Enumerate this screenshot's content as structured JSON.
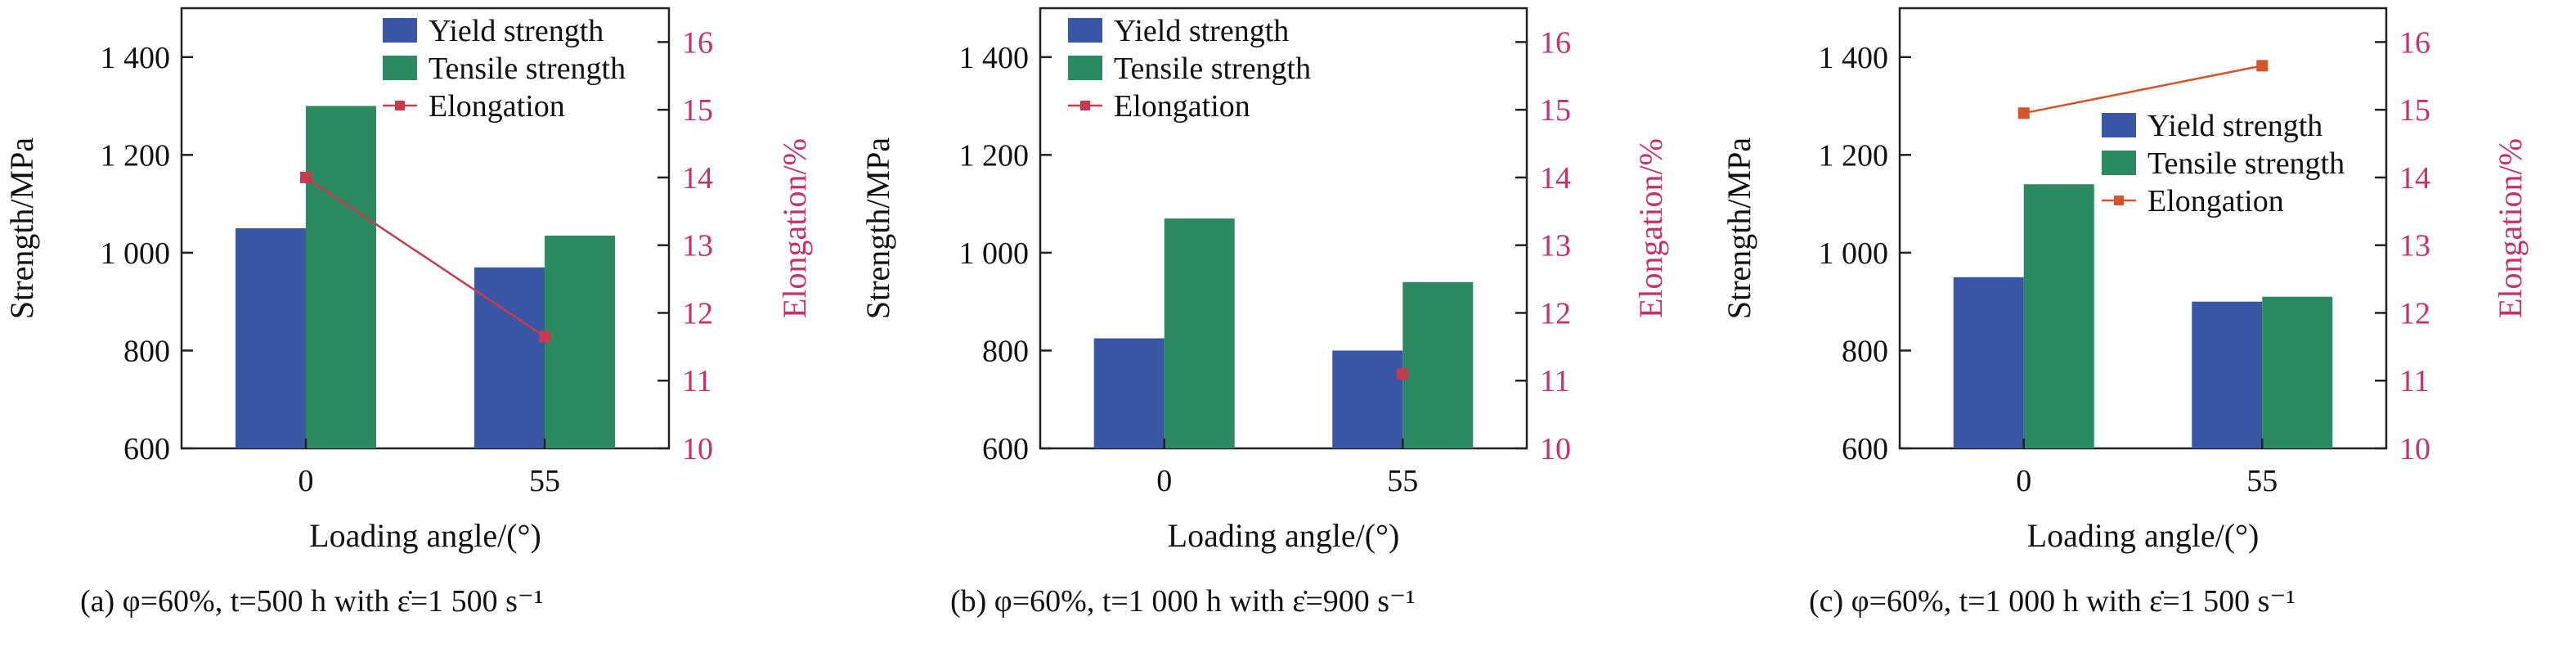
{
  "colors": {
    "yield": "#3a57a5",
    "tensile": "#2c8a62",
    "elongation_a": "#c83a4e",
    "elongation_b": "#c83a4e",
    "elongation_c": "#d2552b",
    "right_axis": "#c8306a",
    "axis": "#222222"
  },
  "panels": [
    {
      "caption": "(a) φ=60%, t=500 h with ε̇=1 500 s⁻¹"
    },
    {
      "caption": "(b) φ=60%, t=1 000 h with ε̇=900 s⁻¹"
    },
    {
      "caption": "(c) φ=60%, t=1 000 h with ε̇=1 500 s⁻¹"
    }
  ],
  "chart_data": [
    {
      "type": "bar",
      "categories": [
        "0",
        "55"
      ],
      "xlabel": "Loading angle/(°)",
      "ylabel": "Strength/MPa",
      "y2label": "Elongation/%",
      "ylim": [
        600,
        1500
      ],
      "y2lim": [
        10,
        16.5
      ],
      "yticks": [
        "600",
        "800",
        "1 000",
        "1 200",
        "1 400"
      ],
      "y2ticks": [
        "10",
        "11",
        "12",
        "13",
        "14",
        "15",
        "16"
      ],
      "legend_position": "top-right",
      "series": [
        {
          "name": "Yield strength",
          "values": [
            1050,
            970
          ]
        },
        {
          "name": "Tensile strength",
          "values": [
            1300,
            1035
          ]
        },
        {
          "name": "Elongation",
          "type": "line",
          "axis": "right",
          "values": [
            14.0,
            11.65
          ]
        }
      ]
    },
    {
      "type": "bar",
      "categories": [
        "0",
        "55"
      ],
      "xlabel": "Loading angle/(°)",
      "ylabel": "Strength/MPa",
      "y2label": "Elongation/%",
      "ylim": [
        600,
        1500
      ],
      "y2lim": [
        10,
        16.5
      ],
      "yticks": [
        "600",
        "800",
        "1 000",
        "1 200",
        "1 400"
      ],
      "y2ticks": [
        "10",
        "11",
        "12",
        "13",
        "14",
        "15",
        "16"
      ],
      "legend_position": "top-left",
      "series": [
        {
          "name": "Yield strength",
          "values": [
            825,
            800
          ]
        },
        {
          "name": "Tensile strength",
          "values": [
            1070,
            940
          ]
        },
        {
          "name": "Elongation",
          "type": "line",
          "axis": "right",
          "values": [
            null,
            11.1
          ]
        }
      ]
    },
    {
      "type": "bar",
      "categories": [
        "0",
        "55"
      ],
      "xlabel": "Loading angle/(°)",
      "ylabel": "Strength/MPa",
      "y2label": "Elongation/%",
      "ylim": [
        600,
        1500
      ],
      "y2lim": [
        10,
        16.5
      ],
      "yticks": [
        "600",
        "800",
        "1 000",
        "1 200",
        "1 400"
      ],
      "y2ticks": [
        "10",
        "11",
        "12",
        "13",
        "14",
        "15",
        "16"
      ],
      "legend_position": "upper-right",
      "series": [
        {
          "name": "Yield strength",
          "values": [
            950,
            900
          ]
        },
        {
          "name": "Tensile strength",
          "values": [
            1140,
            910
          ]
        },
        {
          "name": "Elongation",
          "type": "line",
          "axis": "right",
          "values": [
            14.95,
            15.65
          ]
        }
      ]
    }
  ]
}
